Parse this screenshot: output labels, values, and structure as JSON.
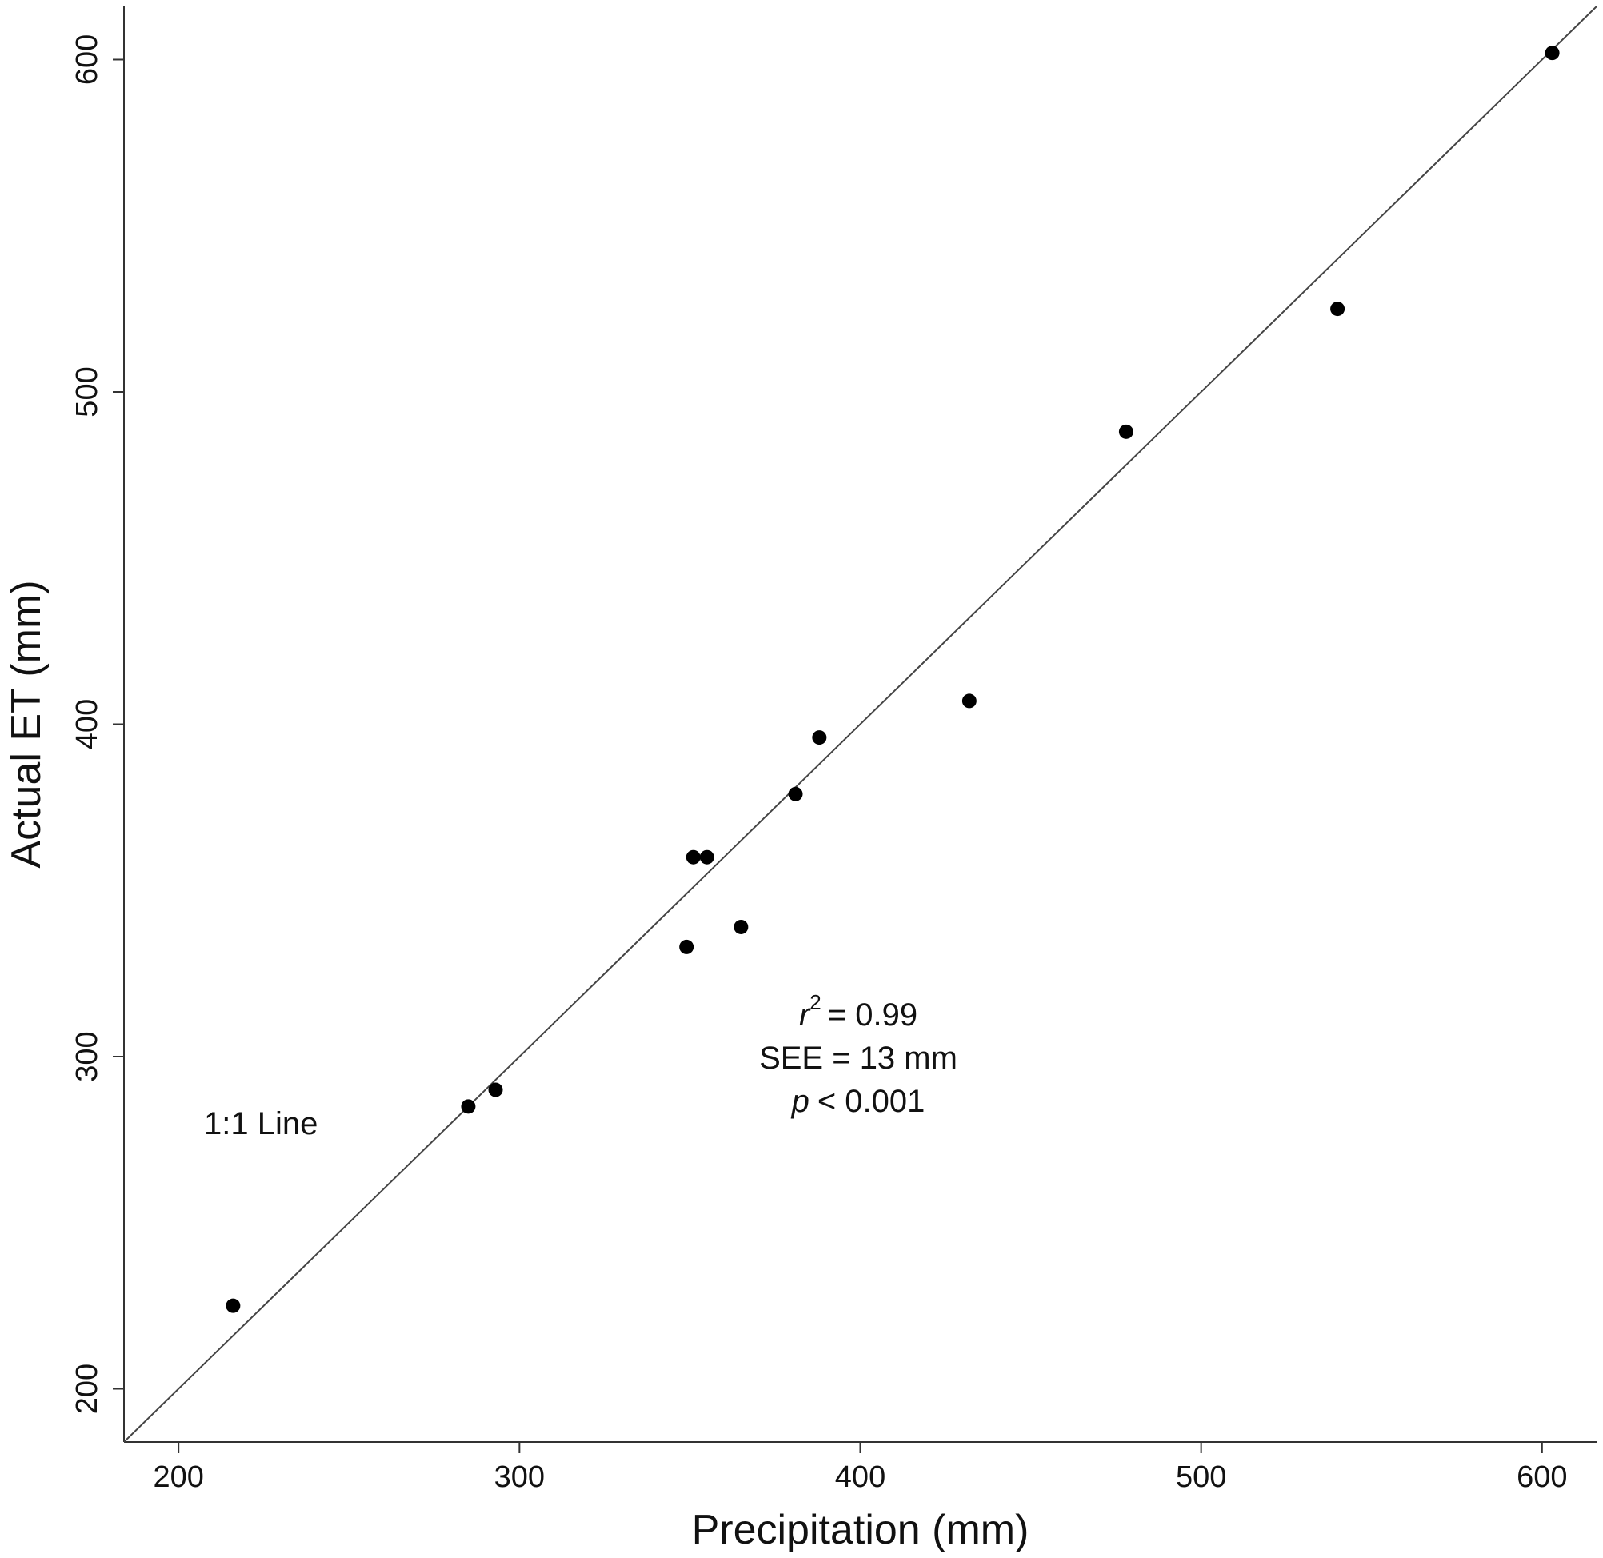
{
  "chart_data": {
    "type": "scatter",
    "title": "",
    "xlabel": "Precipitation (mm)",
    "ylabel": "Actual ET (mm)",
    "xlim": [
      184,
      616
    ],
    "ylim": [
      184,
      616
    ],
    "x_ticks": [
      200,
      300,
      400,
      500,
      600
    ],
    "y_ticks": [
      200,
      300,
      400,
      500,
      600
    ],
    "grid": false,
    "legend": "none",
    "points": [
      {
        "x": 216,
        "y": 225
      },
      {
        "x": 285,
        "y": 285
      },
      {
        "x": 293,
        "y": 290
      },
      {
        "x": 349,
        "y": 333
      },
      {
        "x": 351,
        "y": 360
      },
      {
        "x": 355,
        "y": 360
      },
      {
        "x": 365,
        "y": 339
      },
      {
        "x": 381,
        "y": 379
      },
      {
        "x": 388,
        "y": 396
      },
      {
        "x": 432,
        "y": 407
      },
      {
        "x": 478,
        "y": 488
      },
      {
        "x": 540,
        "y": 525
      },
      {
        "x": 603,
        "y": 602
      }
    ],
    "reference_line": {
      "label": "1:1 Line",
      "slope": 1,
      "intercept": 0
    },
    "stats": {
      "r_symbol": "r",
      "r_power": "2",
      "r_value": "= 0.99",
      "see": "SEE = 13 mm",
      "p_symbol": "p",
      "p_value": "< 0.001"
    }
  }
}
